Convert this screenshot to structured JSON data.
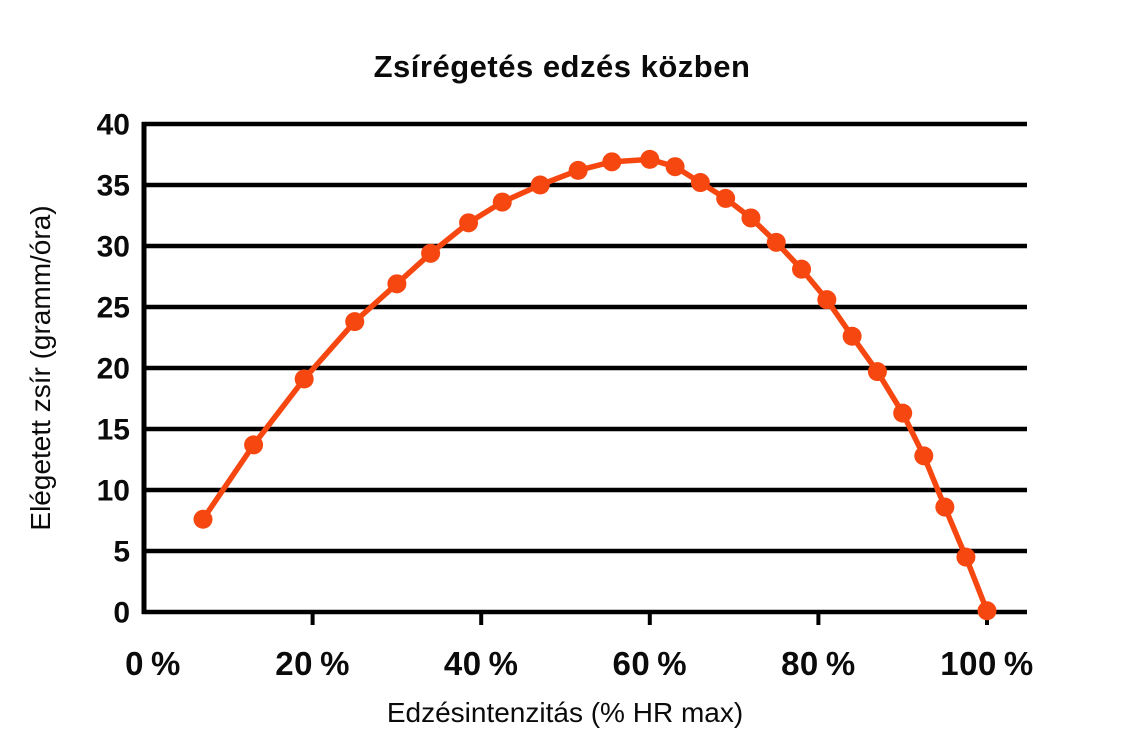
{
  "title": "Zsírégetés edzés közben",
  "colors": {
    "line": "#F74711",
    "marker": "#F74711",
    "axis": "#000000",
    "text": "#0B0B0B",
    "background": "#FFFFFF"
  },
  "chart_data": {
    "type": "line",
    "title": "Zsírégetés edzés közben",
    "xlabel": "Edzésintenzitás (% HR max)",
    "ylabel": "Elégetett zsír (gramm/óra)",
    "xlim": [
      0,
      100
    ],
    "ylim": [
      0,
      40
    ],
    "x_ticks": [
      0,
      20,
      40,
      60,
      80,
      100
    ],
    "x_tick_labels": [
      "0 %",
      "20 %",
      "40 %",
      "60 %",
      "80 %",
      "100 %"
    ],
    "y_ticks": [
      0,
      5,
      10,
      15,
      20,
      25,
      30,
      35,
      40
    ],
    "grid": "horizontal",
    "legend": "none",
    "marker": "circle",
    "series": [
      {
        "name": "Elégetett zsír",
        "x": [
          7,
          13,
          19,
          25,
          30,
          34,
          38.5,
          42.5,
          47,
          51.5,
          55.5,
          60,
          63,
          66,
          69,
          72,
          75,
          78,
          81,
          84,
          87,
          90,
          92.5,
          95,
          97.5,
          100
        ],
        "y": [
          7.6,
          13.7,
          19.1,
          23.8,
          26.9,
          29.4,
          31.9,
          33.6,
          35.0,
          36.2,
          36.9,
          37.1,
          36.5,
          35.2,
          33.9,
          32.3,
          30.3,
          28.1,
          25.6,
          22.6,
          19.7,
          16.3,
          12.8,
          8.6,
          4.5,
          0.1
        ]
      }
    ]
  }
}
